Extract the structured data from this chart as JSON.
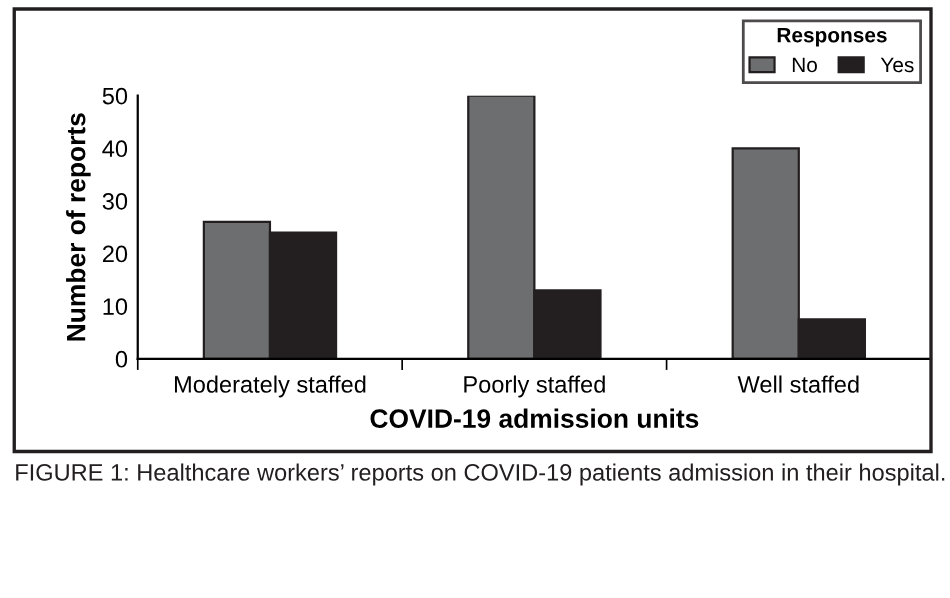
{
  "chart_data": {
    "type": "bar",
    "xlabel": "COVID-19 admission units",
    "ylabel": "Number of reports",
    "legend_title": "Responses",
    "categories": [
      "Moderately staffed",
      "Poorly staffed",
      "Well staffed"
    ],
    "series": [
      {
        "name": "No",
        "color": "#6d6e70",
        "values": [
          26,
          50,
          40
        ]
      },
      {
        "name": "Yes",
        "color": "#231f20",
        "values": [
          24,
          13,
          7.5
        ]
      }
    ],
    "ylim": [
      0,
      50
    ],
    "yticks": [
      0,
      10,
      20,
      30,
      40,
      50
    ],
    "grid": false,
    "legend": "top right",
    "annotations": [
      "FIGURE 1: Healthcare workers’ reports on COVID-19 patients admission in their hospital."
    ]
  }
}
